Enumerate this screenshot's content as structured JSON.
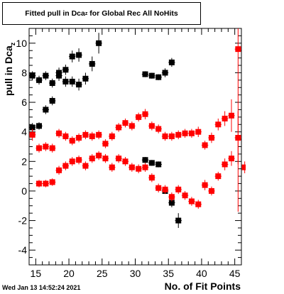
{
  "chart_data": {
    "type": "scatter",
    "title": "Fitted pull in Dca",
    "title_sub": "z",
    "title_rest": " for Global Rec All NoHits",
    "xlabel": "No. of Fit Points",
    "ylabel": "pull in Dca",
    "ylabel_sub": "z",
    "xlim": [
      14,
      46
    ],
    "ylim": [
      -5,
      11
    ],
    "x_ticks": [
      15,
      20,
      25,
      30,
      35,
      40,
      45
    ],
    "y_ticks": [
      -4,
      -2,
      0,
      2,
      4,
      6,
      8,
      10
    ],
    "grid": false,
    "legend": "none",
    "series": [
      {
        "color": "#000000",
        "points": [
          {
            "x": 14.5,
            "y": 4.3,
            "err": 0.3
          },
          {
            "x": 14.5,
            "y": 7.8,
            "err": 0.3
          },
          {
            "x": 15.5,
            "y": 4.4,
            "err": 0.25
          },
          {
            "x": 15.5,
            "y": 7.5,
            "err": 0.3
          },
          {
            "x": 16.5,
            "y": 5.5,
            "err": 0.3
          },
          {
            "x": 16.5,
            "y": 7.8,
            "err": 0.3
          },
          {
            "x": 17.5,
            "y": 6.1,
            "err": 0.3
          },
          {
            "x": 17.5,
            "y": 7.3,
            "err": 0.3
          },
          {
            "x": 18.5,
            "y": 7.8,
            "err": 0.35
          },
          {
            "x": 18.5,
            "y": 8.0,
            "err": 0.35
          },
          {
            "x": 19.5,
            "y": 7.4,
            "err": 0.35
          },
          {
            "x": 19.5,
            "y": 8.2,
            "err": 0.35
          },
          {
            "x": 20.5,
            "y": 7.4,
            "err": 0.35
          },
          {
            "x": 20.5,
            "y": 9.1,
            "err": 0.4
          },
          {
            "x": 21.5,
            "y": 7.2,
            "err": 0.4
          },
          {
            "x": 21.5,
            "y": 9.2,
            "err": 0.45
          },
          {
            "x": 22.5,
            "y": 7.6,
            "err": 0.4
          },
          {
            "x": 23.5,
            "y": 8.6,
            "err": 0.5
          },
          {
            "x": 24.5,
            "y": 10.0,
            "err": 0.7
          },
          {
            "x": 31.5,
            "y": 7.9,
            "err": 0.2
          },
          {
            "x": 32.5,
            "y": 7.8,
            "err": 0.2
          },
          {
            "x": 33.5,
            "y": 7.7,
            "err": 0.2
          },
          {
            "x": 34.5,
            "y": 8.0,
            "err": 0.3
          },
          {
            "x": 35.5,
            "y": 8.7,
            "err": 0.3
          },
          {
            "x": 31.5,
            "y": 2.1,
            "err": 0.2
          },
          {
            "x": 32.5,
            "y": 1.9,
            "err": 0.2
          },
          {
            "x": 33.5,
            "y": 1.8,
            "err": 0.2
          },
          {
            "x": 34.5,
            "y": 0.0,
            "err": 0.2
          },
          {
            "x": 35.5,
            "y": -0.8,
            "err": 0.3
          },
          {
            "x": 36.5,
            "y": -2.0,
            "err": 0.5
          }
        ]
      },
      {
        "color": "#ff0000",
        "points": [
          {
            "x": 14.5,
            "y": 3.8,
            "err": 0.4
          },
          {
            "x": 15.5,
            "y": 2.9,
            "err": 0.3
          },
          {
            "x": 16.5,
            "y": 3.0,
            "err": 0.3
          },
          {
            "x": 17.5,
            "y": 2.9,
            "err": 0.3
          },
          {
            "x": 18.5,
            "y": 3.9,
            "err": 0.3
          },
          {
            "x": 19.5,
            "y": 3.7,
            "err": 0.3
          },
          {
            "x": 20.5,
            "y": 3.4,
            "err": 0.3
          },
          {
            "x": 21.5,
            "y": 3.6,
            "err": 0.3
          },
          {
            "x": 22.5,
            "y": 3.8,
            "err": 0.3
          },
          {
            "x": 23.5,
            "y": 3.7,
            "err": 0.3
          },
          {
            "x": 24.5,
            "y": 3.8,
            "err": 0.3
          },
          {
            "x": 25.5,
            "y": 3.2,
            "err": 0.3
          },
          {
            "x": 26.5,
            "y": 3.7,
            "err": 0.3
          },
          {
            "x": 27.5,
            "y": 4.3,
            "err": 0.3
          },
          {
            "x": 28.5,
            "y": 4.6,
            "err": 0.3
          },
          {
            "x": 29.5,
            "y": 4.4,
            "err": 0.3
          },
          {
            "x": 30.5,
            "y": 5.0,
            "err": 0.3
          },
          {
            "x": 31.5,
            "y": 5.2,
            "err": 0.35
          },
          {
            "x": 32.5,
            "y": 4.4,
            "err": 0.3
          },
          {
            "x": 33.5,
            "y": 4.2,
            "err": 0.3
          },
          {
            "x": 34.5,
            "y": 3.7,
            "err": 0.3
          },
          {
            "x": 35.5,
            "y": 3.7,
            "err": 0.3
          },
          {
            "x": 36.5,
            "y": 3.8,
            "err": 0.3
          },
          {
            "x": 37.5,
            "y": 3.9,
            "err": 0.3
          },
          {
            "x": 38.5,
            "y": 3.9,
            "err": 0.3
          },
          {
            "x": 39.5,
            "y": 4.0,
            "err": 0.35
          },
          {
            "x": 40.5,
            "y": 3.1,
            "err": 0.3
          },
          {
            "x": 41.5,
            "y": 3.6,
            "err": 0.35
          },
          {
            "x": 42.5,
            "y": 4.5,
            "err": 0.4
          },
          {
            "x": 43.5,
            "y": 4.9,
            "err": 0.5
          },
          {
            "x": 44.5,
            "y": 5.1,
            "err": 1.1
          },
          {
            "x": 45.5,
            "y": 9.6,
            "err": 11.0
          },
          {
            "x": 15.5,
            "y": 0.5,
            "err": 0.25
          },
          {
            "x": 16.5,
            "y": 0.5,
            "err": 0.25
          },
          {
            "x": 17.5,
            "y": 0.6,
            "err": 0.25
          },
          {
            "x": 18.5,
            "y": 1.4,
            "err": 0.3
          },
          {
            "x": 19.5,
            "y": 1.7,
            "err": 0.3
          },
          {
            "x": 20.5,
            "y": 2.0,
            "err": 0.3
          },
          {
            "x": 21.5,
            "y": 2.1,
            "err": 0.3
          },
          {
            "x": 22.5,
            "y": 1.7,
            "err": 0.3
          },
          {
            "x": 23.5,
            "y": 2.2,
            "err": 0.3
          },
          {
            "x": 24.5,
            "y": 2.4,
            "err": 0.3
          },
          {
            "x": 25.5,
            "y": 2.2,
            "err": 0.3
          },
          {
            "x": 26.5,
            "y": 1.6,
            "err": 0.3
          },
          {
            "x": 27.5,
            "y": 2.2,
            "err": 0.3
          },
          {
            "x": 28.5,
            "y": 2.0,
            "err": 0.3
          },
          {
            "x": 29.5,
            "y": 1.6,
            "err": 0.3
          },
          {
            "x": 30.5,
            "y": 1.5,
            "err": 0.3
          },
          {
            "x": 31.5,
            "y": 1.6,
            "err": 0.3
          },
          {
            "x": 32.5,
            "y": 0.9,
            "err": 0.3
          },
          {
            "x": 33.5,
            "y": 0.2,
            "err": 0.3
          },
          {
            "x": 34.5,
            "y": 0.1,
            "err": 0.3
          },
          {
            "x": 35.5,
            "y": -0.4,
            "err": 0.3
          },
          {
            "x": 36.5,
            "y": 0.1,
            "err": 0.3
          },
          {
            "x": 37.5,
            "y": -0.3,
            "err": 0.3
          },
          {
            "x": 38.5,
            "y": -0.7,
            "err": 0.3
          },
          {
            "x": 39.5,
            "y": -0.9,
            "err": 0.3
          },
          {
            "x": 40.5,
            "y": 0.4,
            "err": 0.35
          },
          {
            "x": 41.5,
            "y": 0.0,
            "err": 0.3
          },
          {
            "x": 42.5,
            "y": 1.0,
            "err": 0.3
          },
          {
            "x": 43.5,
            "y": 1.8,
            "err": 0.4
          },
          {
            "x": 44.5,
            "y": 2.2,
            "err": 0.5
          },
          {
            "x": 45.5,
            "y": 3.6,
            "err": 1.8
          },
          {
            "x": 46.5,
            "y": 1.6,
            "err": 0.4
          }
        ]
      }
    ]
  },
  "timestamp": "Wed Jan 13 14:52:24 2021"
}
